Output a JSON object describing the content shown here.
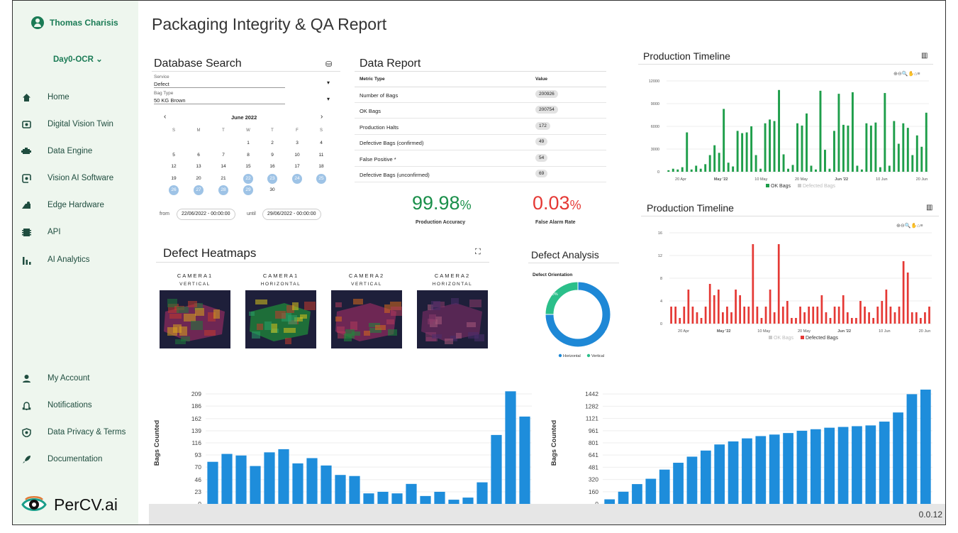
{
  "sidebar": {
    "user_name": "Thomas Charisis",
    "workspace": "Day0-OCR",
    "workspace_caret": "⌄",
    "nav": [
      {
        "label": "Home",
        "icon": "home-icon"
      },
      {
        "label": "Digital Vision Twin",
        "icon": "camera-frame-icon"
      },
      {
        "label": "Data Engine",
        "icon": "engine-icon"
      },
      {
        "label": "Vision AI Software",
        "icon": "ai-software-icon"
      },
      {
        "label": "Edge Hardware",
        "icon": "edge-hardware-icon"
      },
      {
        "label": "API",
        "icon": "api-icon"
      },
      {
        "label": "AI Analytics",
        "icon": "analytics-icon"
      }
    ],
    "bottom_nav": [
      {
        "label": "My Account",
        "icon": "account-icon"
      },
      {
        "label": "Notifications",
        "icon": "bell-icon"
      },
      {
        "label": "Data Privacy & Terms",
        "icon": "shield-icon"
      },
      {
        "label": "Documentation",
        "icon": "rocket-icon"
      }
    ],
    "brand": "PerCV.ai"
  },
  "page": {
    "title": "Packaging Integrity & QA Report",
    "version": "0.0.12"
  },
  "db_search": {
    "title": "Database Search",
    "service_label": "Service",
    "service_value": "Defect",
    "bag_label": "Bag Type",
    "bag_value": "50 KG Brown",
    "month": "June 2022",
    "prev": "‹",
    "next": "›",
    "weekdays": [
      "S",
      "M",
      "T",
      "W",
      "T",
      "F",
      "S"
    ],
    "days": [
      [
        "",
        "",
        "",
        "1",
        "2",
        "3",
        "4"
      ],
      [
        "5",
        "6",
        "7",
        "8",
        "9",
        "10",
        "11"
      ],
      [
        "12",
        "13",
        "14",
        "15",
        "16",
        "17",
        "18"
      ],
      [
        "19",
        "20",
        "21",
        "22",
        "23",
        "24",
        "25"
      ],
      [
        "26",
        "27",
        "28",
        "29",
        "30",
        "",
        ""
      ]
    ],
    "selected_days": [
      "22",
      "23",
      "24",
      "25",
      "26",
      "27",
      "28",
      "29"
    ],
    "from_label": "from",
    "from_value": "22/06/2022 - 00:00:00",
    "until_label": "until",
    "until_value": "29/06/2022 - 00:00:00"
  },
  "data_report": {
    "title": "Data Report",
    "col_metric": "Metric Type",
    "col_value": "Value",
    "rows": [
      {
        "metric": "Number of Bags",
        "value": "200926"
      },
      {
        "metric": "OK Bags",
        "value": "200754"
      },
      {
        "metric": "Production Halts",
        "value": "172"
      },
      {
        "metric": "Defective Bags (confirmed)",
        "value": "49"
      },
      {
        "metric": "False Positive *",
        "value": "54"
      },
      {
        "metric": "Defective Bags (unconfirmed)",
        "value": "69"
      }
    ],
    "accuracy_value": "99.98",
    "accuracy_unit": "%",
    "accuracy_label": "Production Accuracy",
    "accuracy_color": "#1a8f4a",
    "false_alarm_value": "0.03",
    "false_alarm_unit": "%",
    "false_alarm_label": "False Alarm Rate",
    "false_alarm_color": "#e53935"
  },
  "heatmaps": {
    "title": "Defect Heatmaps",
    "cameras": [
      {
        "name": "CAMERA1",
        "orientation": "VERTICAL"
      },
      {
        "name": "CAMERA1",
        "orientation": "HORIZONTAL"
      },
      {
        "name": "CAMERA2",
        "orientation": "VERTICAL"
      },
      {
        "name": "CAMERA2",
        "orientation": "HORIZONTAL"
      }
    ]
  },
  "defect_analysis": {
    "title": "Defect Analysis"
  },
  "chart_data": [
    {
      "type": "bar",
      "title": "Production Timeline",
      "series": [
        {
          "name": "OK Bags",
          "color": "#1e9e4a"
        }
      ],
      "legend": [
        "OK Bags",
        "Defected Bags"
      ],
      "yticks": [
        "12000",
        "9000",
        "6000",
        "3000",
        "0"
      ],
      "xticks": [
        "20 Apr",
        "May '22",
        "10 May",
        "20 May",
        "Jun '22",
        "10 Jun",
        "20 Jun"
      ],
      "values": [
        200,
        400,
        300,
        600,
        5200,
        300,
        800,
        400,
        1000,
        2200,
        3500,
        2500,
        8300,
        1200,
        700,
        5400,
        5100,
        5200,
        6000,
        2200,
        400,
        6400,
        6900,
        6700,
        10800,
        2300,
        400,
        900,
        6400,
        6100,
        7700,
        800,
        300,
        10700,
        2900,
        400,
        5400,
        10300,
        6200,
        6100,
        10500,
        800,
        300,
        6400,
        6100,
        6500,
        600,
        10400,
        800,
        6700,
        3700,
        6400,
        5800,
        2200,
        4800,
        3300,
        7800
      ],
      "ylim": [
        0,
        12000
      ]
    },
    {
      "type": "bar",
      "title": "Production Timeline",
      "series": [
        {
          "name": "Defected Bags",
          "color": "#e53935"
        }
      ],
      "legend": [
        "OK Bags",
        "Defected Bags"
      ],
      "yticks": [
        "16",
        "12",
        "8",
        "4",
        "0"
      ],
      "xticks": [
        "20 Apr",
        "May '22",
        "10 May",
        "20 May",
        "Jun '22",
        "10 Jun",
        "20 Jun"
      ],
      "values": [
        3,
        3,
        1,
        3,
        6,
        3,
        2,
        1,
        3,
        7,
        5,
        6,
        2,
        3,
        2,
        6,
        5,
        3,
        3,
        14,
        3,
        1,
        3,
        6,
        2,
        14,
        3,
        4,
        1,
        1,
        3,
        2,
        3,
        3,
        3,
        5,
        2,
        1,
        3,
        3,
        5,
        2,
        1,
        1,
        4,
        3,
        2,
        1,
        3,
        4,
        6,
        3,
        2,
        3,
        11,
        9,
        2,
        2,
        1,
        2,
        3
      ],
      "ylim": [
        0,
        16
      ]
    },
    {
      "type": "pie",
      "title": "Defect Orientation",
      "categories": [
        "Horizontal",
        "Vertical"
      ],
      "values": [
        75.0,
        25.0
      ],
      "labels": [
        "75.0%",
        "25.0%"
      ],
      "colors": [
        "#1e88d6",
        "#2bbf8a"
      ]
    },
    {
      "type": "bar",
      "ylabel": "Bags Counted",
      "yticks": [
        "209",
        "186",
        "162",
        "139",
        "116",
        "93",
        "70",
        "46",
        "23",
        "0"
      ],
      "values": [
        80,
        95,
        92,
        72,
        98,
        104,
        77,
        87,
        73,
        55,
        53,
        20,
        23,
        20,
        38,
        15,
        23,
        8,
        12,
        41,
        131,
        214,
        166
      ],
      "ylim": [
        0,
        232
      ],
      "color": "#1e8ddb"
    },
    {
      "type": "bar",
      "ylabel": "Bags Counted",
      "yticks": [
        "1442",
        "1282",
        "1121",
        "961",
        "801",
        "641",
        "481",
        "320",
        "160",
        "0"
      ],
      "values": [
        60,
        160,
        260,
        330,
        450,
        540,
        620,
        700,
        780,
        820,
        860,
        890,
        910,
        930,
        960,
        980,
        1000,
        1010,
        1020,
        1030,
        1080,
        1200,
        1440,
        1500
      ],
      "ylim": [
        0,
        1602
      ],
      "color": "#1e8ddb"
    }
  ]
}
